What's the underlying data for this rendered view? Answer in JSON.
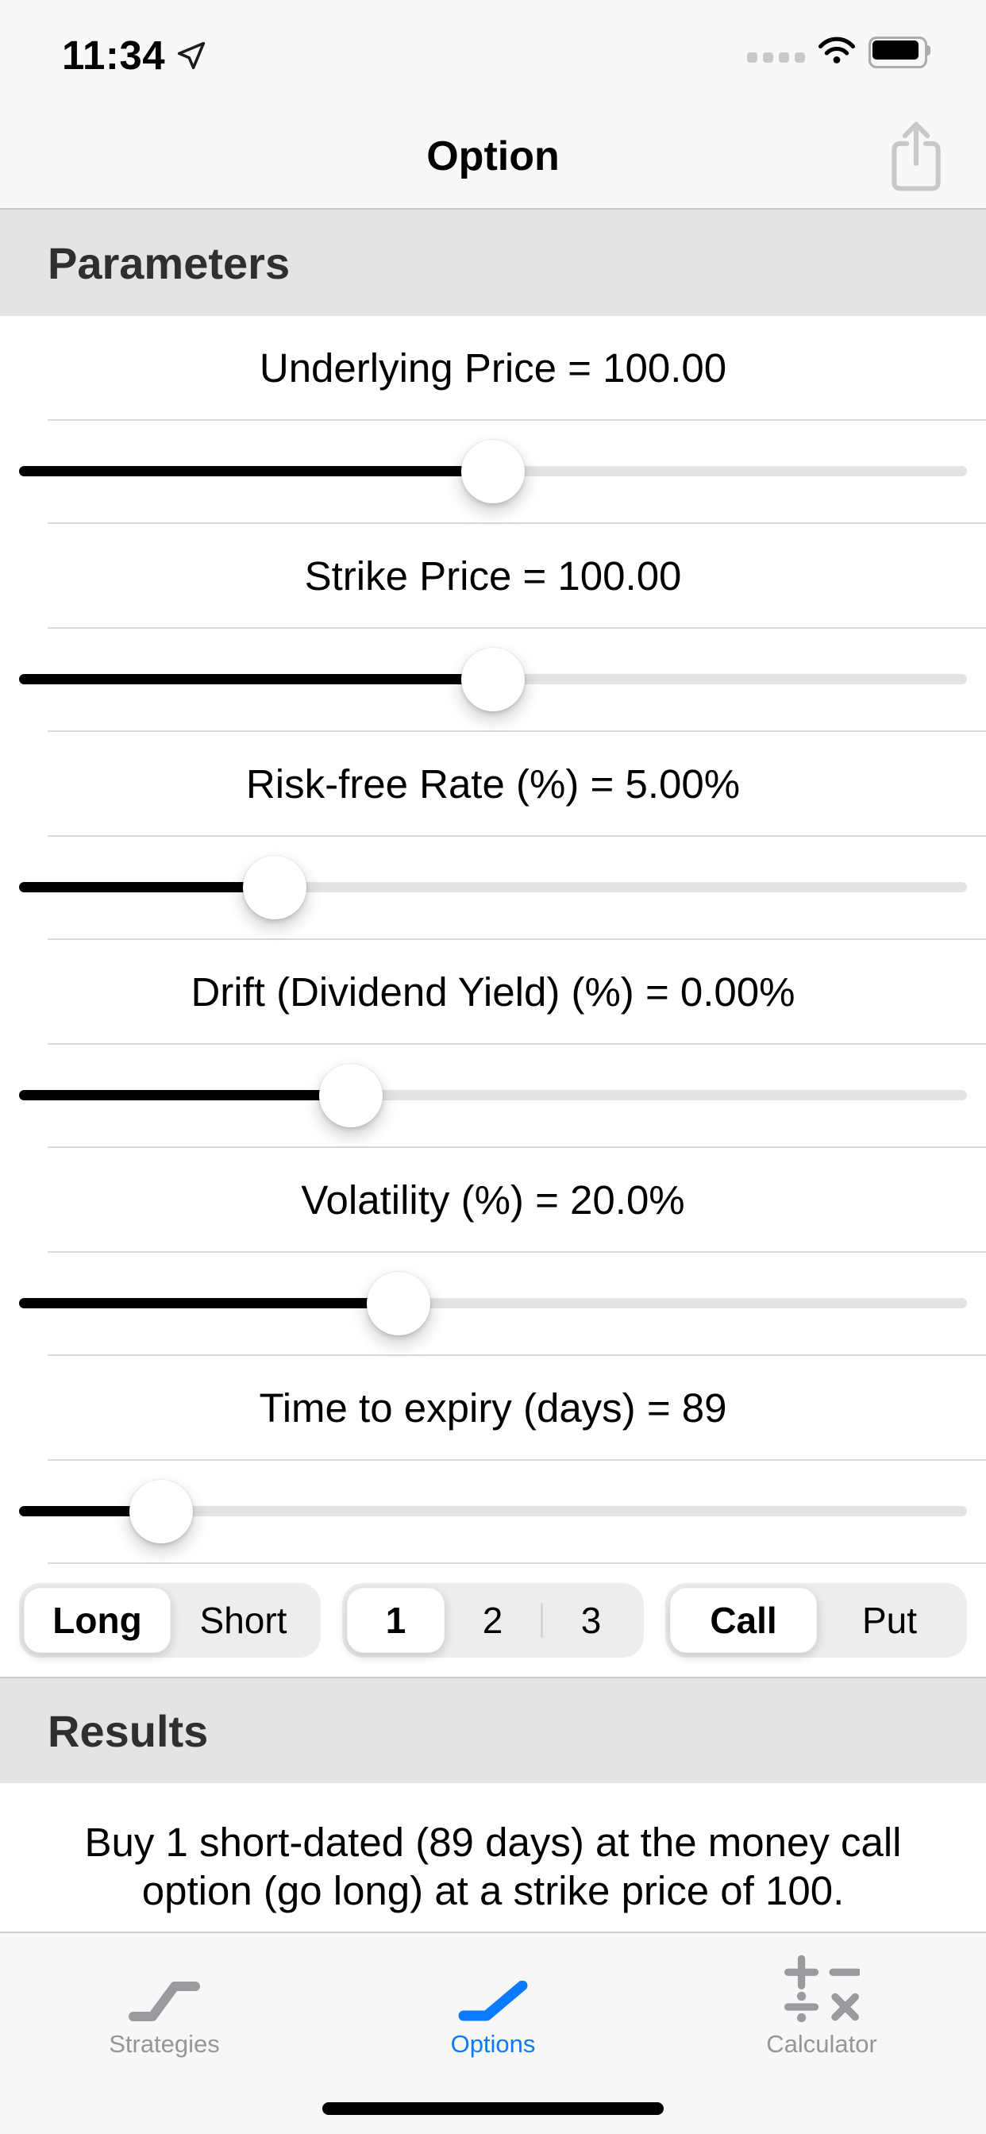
{
  "status_bar": {
    "time": "11:34",
    "icons": [
      "location-arrow",
      "cellular-signal-dots",
      "wifi",
      "battery-full"
    ]
  },
  "nav": {
    "title": "Option"
  },
  "sections": {
    "parameters_header": "Parameters",
    "results_header": "Results"
  },
  "parameters": [
    {
      "label": "Underlying Price = 100.00",
      "fill_percent": 50
    },
    {
      "label": "Strike Price = 100.00",
      "fill_percent": 50
    },
    {
      "label": "Risk-free Rate (%) = 5.00%",
      "fill_percent": 27
    },
    {
      "label": "Drift (Dividend Yield) (%) = 0.00%",
      "fill_percent": 35
    },
    {
      "label": "Volatility (%) = 20.0%",
      "fill_percent": 40
    },
    {
      "label": "Time to expiry (days) = 89",
      "fill_percent": 15
    }
  ],
  "segmented_controls": [
    {
      "name": "direction",
      "options": [
        "Long",
        "Short"
      ],
      "selected": 0
    },
    {
      "name": "quantity",
      "options": [
        "1",
        "2",
        "3"
      ],
      "selected": 0
    },
    {
      "name": "option-type",
      "options": [
        "Call",
        "Put"
      ],
      "selected": 0
    }
  ],
  "results": {
    "lines": [
      "Buy 1 short-dated (89 days) at the money call",
      "option (go long) at a strike price of 100."
    ]
  },
  "tab_bar": {
    "items": [
      {
        "label": "Strategies",
        "icon": "strategy-payoff-icon",
        "active": false
      },
      {
        "label": "Options",
        "icon": "option-payoff-icon",
        "active": true
      },
      {
        "label": "Calculator",
        "icon": "calculator-icon",
        "active": false
      }
    ]
  },
  "colors": {
    "accent": "#0A7AFF",
    "slider_fill": "#000000",
    "slider_track": "#E3E3E4",
    "section_header_bg": "#E4E4E4",
    "chrome_bg": "#F8F8F8",
    "tab_inactive": "#96969A"
  }
}
